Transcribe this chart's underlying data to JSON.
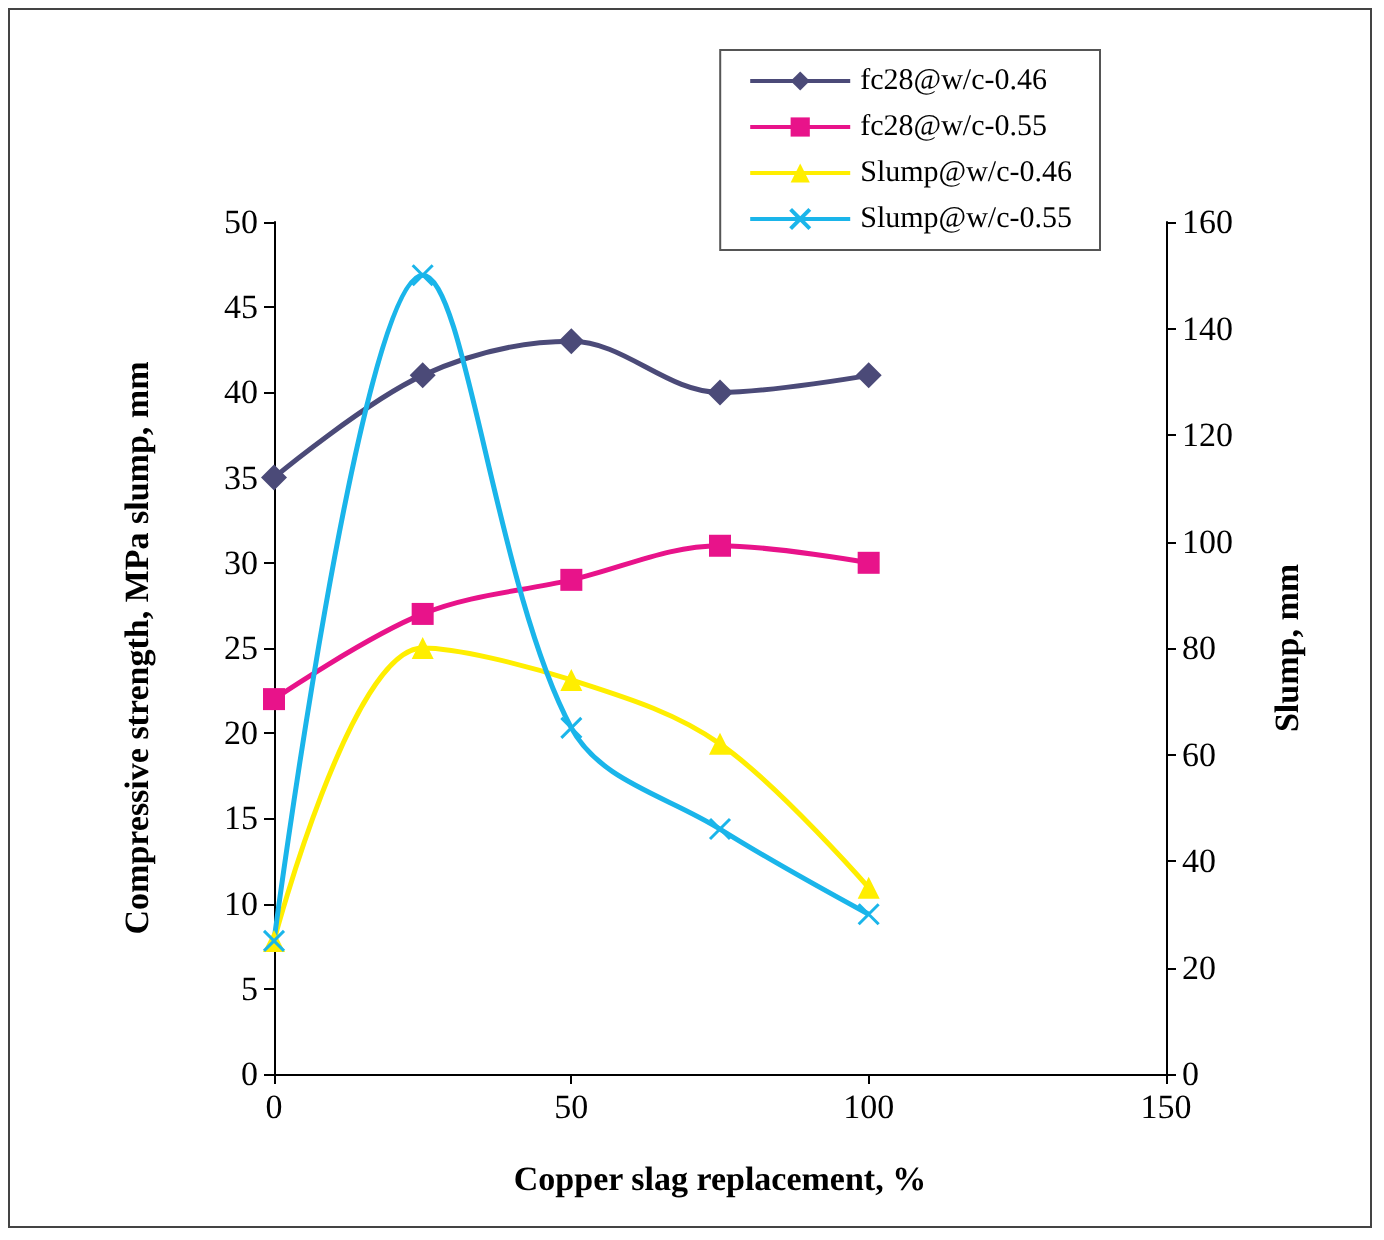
{
  "chart_data": {
    "type": "line",
    "xlabel": "Copper slag replacement, %",
    "ylabel": "Compressive strength, MPa slump, mm",
    "y2label": "Slump, mm",
    "x": [
      0,
      25,
      50,
      75,
      100
    ],
    "series": [
      {
        "name": "fc28@w/c-0.46",
        "color": "#4b4a78",
        "marker": "diamond",
        "values": [
          35,
          41,
          43,
          40,
          41
        ]
      },
      {
        "name": "fc28@w/c-0.55",
        "color": "#e8138a",
        "marker": "square",
        "values": [
          22,
          27,
          29,
          31,
          30
        ]
      },
      {
        "name": "Slump@w/c-0.46",
        "color": "#ffee00",
        "marker": "triangle",
        "axis": "y2",
        "values": [
          25,
          80,
          74,
          62,
          35
        ]
      },
      {
        "name": "Slump@w/c-0.55",
        "color": "#1ab5ea",
        "marker": "cross",
        "axis": "y2",
        "values": [
          25,
          150,
          65,
          46,
          30
        ]
      }
    ],
    "xlim": [
      0,
      150
    ],
    "xticks": [
      0,
      50,
      100,
      150
    ],
    "ylim": [
      0,
      50
    ],
    "yticks": [
      0,
      5,
      10,
      15,
      20,
      25,
      30,
      35,
      40,
      45,
      50
    ],
    "y2lim": [
      0,
      160
    ],
    "y2ticks": [
      0,
      20,
      40,
      60,
      80,
      100,
      120,
      140,
      160
    ],
    "grid": false,
    "legend": "top right"
  }
}
